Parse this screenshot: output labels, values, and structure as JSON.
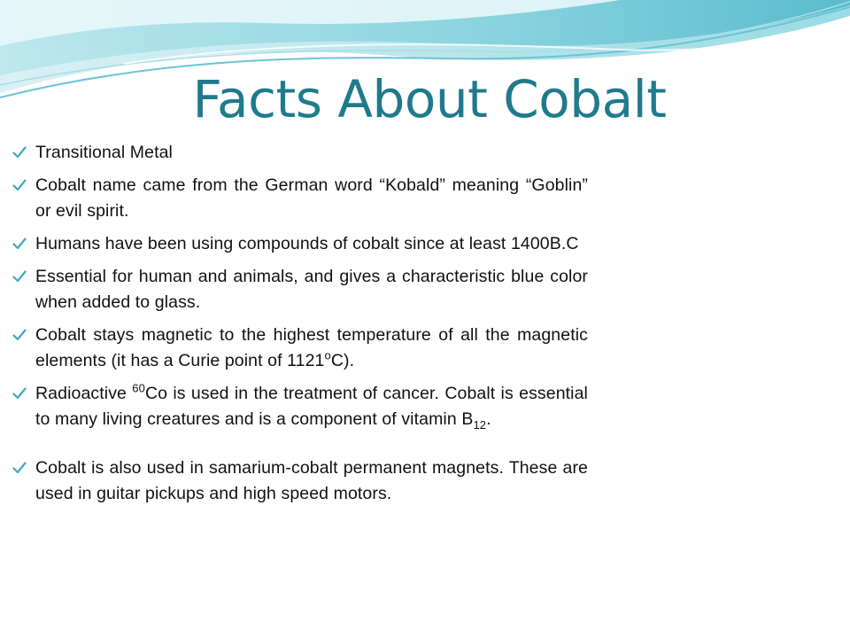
{
  "slide": {
    "title": "Facts About Cobalt",
    "accent_color": "#1f7a8c",
    "bullet_icon": "check-icon",
    "bullets": [
      {
        "text": "Transitional Metal"
      },
      {
        "text": "Cobalt name came from the German word “Kobald” meaning “Goblin” or evil spirit."
      },
      {
        "text": "Humans have been using compounds of cobalt since at least 1400B.C"
      },
      {
        "text": "Essential for human and animals, and gives a characteristic blue color when added to glass."
      },
      {
        "pre": "Cobalt stays magnetic to the highest temperature of all the magnetic elements (it has a Curie point of 1121",
        "sup": "o",
        "post": "C)."
      },
      {
        "pre": "Radioactive ",
        "sup": "60",
        "mid": "Co is used in the treatment of cancer. Cobalt is essential to many living creatures and is a component of vitamin B",
        "sub": "12",
        "post": "."
      },
      {
        "text": "Cobalt is also used in samarium-cobalt permanent magnets. These are used in guitar pickups and high speed motors."
      }
    ]
  }
}
